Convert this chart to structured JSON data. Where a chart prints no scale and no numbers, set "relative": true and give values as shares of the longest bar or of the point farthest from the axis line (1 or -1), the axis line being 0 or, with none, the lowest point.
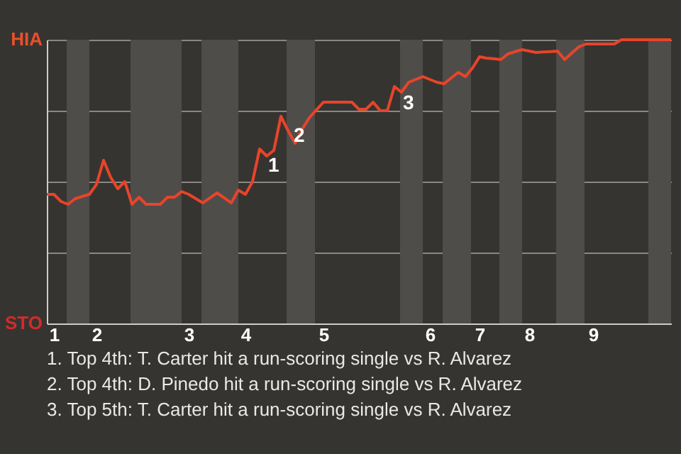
{
  "chart_data": {
    "type": "line",
    "relative": true,
    "categories": [
      null,
      "1",
      null,
      null,
      null,
      null,
      null,
      "2",
      null,
      null,
      null,
      null,
      null,
      null,
      null,
      null,
      null,
      null,
      null,
      null,
      "3",
      null,
      null,
      null,
      null,
      null,
      null,
      null,
      "4",
      null,
      null,
      null,
      null,
      null,
      null,
      null,
      null,
      null,
      null,
      "5",
      null,
      null,
      null,
      null,
      null,
      null,
      null,
      null,
      null,
      null,
      null,
      null,
      null,
      null,
      "6",
      null,
      null,
      null,
      null,
      null,
      null,
      "7",
      null,
      null,
      null,
      null,
      null,
      null,
      "8",
      null,
      null,
      null,
      null,
      null,
      null,
      null,
      null,
      "9",
      null,
      null,
      null,
      null,
      null,
      null,
      null,
      null,
      null,
      null,
      null
    ],
    "series": [
      {
        "color": "#e8442a",
        "values": [
          0.455,
          0.455,
          0.43,
          0.42,
          0.44,
          0.448,
          0.455,
          0.49,
          0.575,
          0.515,
          0.475,
          0.5,
          0.42,
          0.445,
          0.42,
          0.42,
          0.42,
          0.445,
          0.445,
          0.465,
          0.455,
          0.44,
          0.425,
          0.443,
          0.46,
          0.443,
          0.425,
          0.47,
          0.455,
          0.5,
          0.615,
          0.59,
          0.61,
          0.73,
          0.68,
          0.635,
          0.685,
          0.725,
          0.753,
          0.78,
          0.78,
          0.78,
          0.78,
          0.78,
          0.755,
          0.755,
          0.78,
          0.75,
          0.75,
          0.835,
          0.815,
          0.85,
          0.86,
          0.87,
          0.86,
          0.85,
          0.845,
          0.865,
          0.885,
          0.87,
          0.9,
          0.94,
          0.935,
          0.933,
          0.93,
          0.95,
          0.958,
          0.965,
          0.96,
          0.955,
          0.957,
          0.958,
          0.96,
          0.93,
          0.953,
          0.975,
          0.985,
          0.985,
          0.985,
          0.985,
          0.985,
          1.0,
          1.0,
          1.0,
          1.0,
          1.0,
          1.0,
          1.0,
          1.0
        ]
      }
    ],
    "grid": "y",
    "marker": "none",
    "line_style": "solid",
    "annotations": [
      "HIA",
      "STO",
      "1",
      "2",
      "3",
      "1. Top 4th: T. Carter hit a run-scoring single vs R. Alvarez",
      "2. Top 4th: D. Pinedo hit a run-scoring single vs R. Alvarez",
      "3. Top 5th: T. Carter hit a run-scoring single vs R. Alvarez"
    ]
  }
}
